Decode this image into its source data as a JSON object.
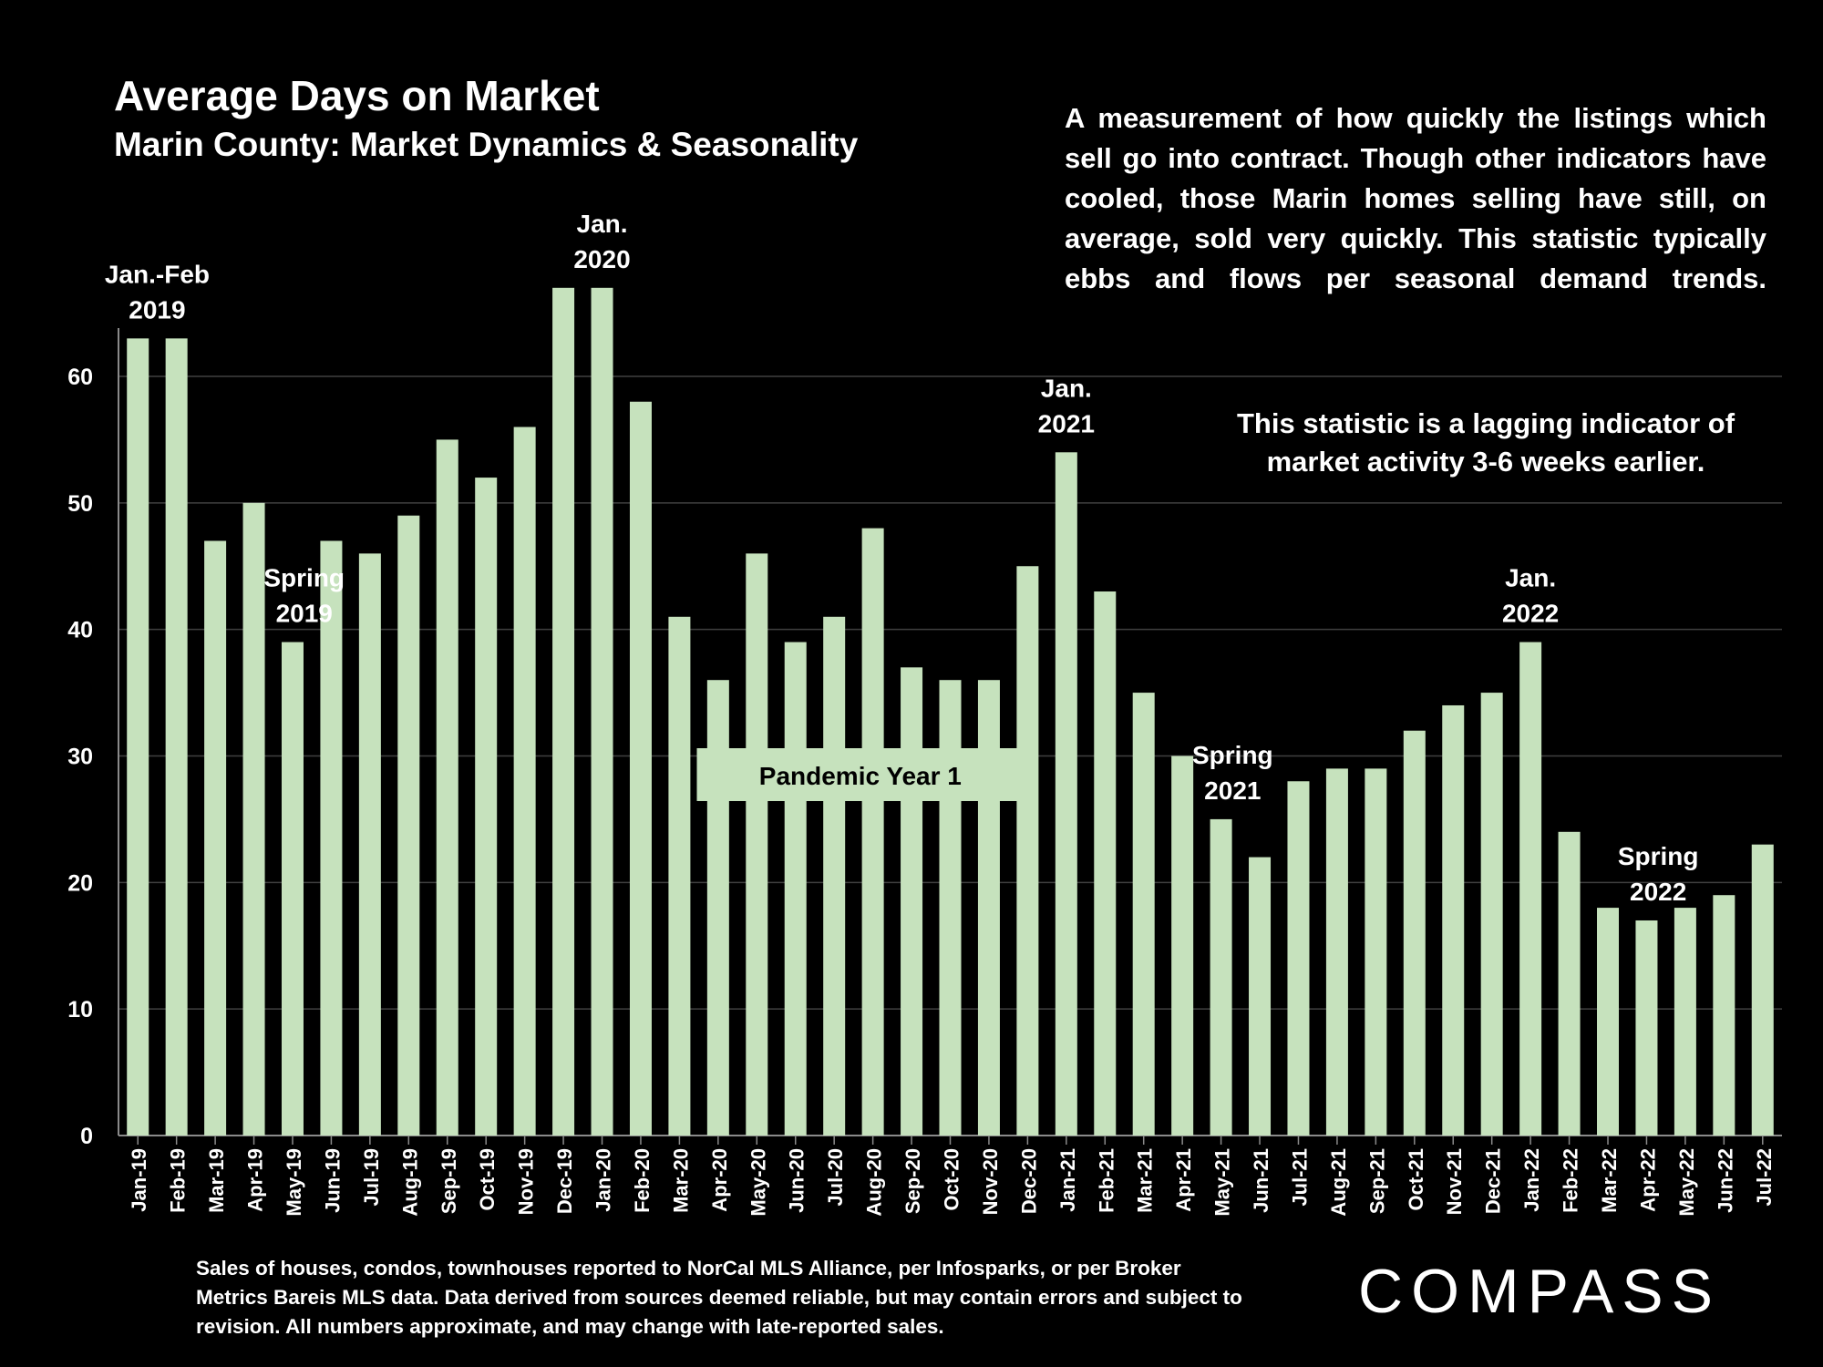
{
  "header": {
    "title": "Average Days on Market",
    "subtitle": "Marin County: Market Dynamics & Seasonality"
  },
  "description": "A measurement of how quickly the listings which sell go into contract. Though other indicators have cooled, those Marin homes selling have still, on average, sold very quickly. This statistic typically ebbs and flows per seasonal demand trends.",
  "lagging_note": "This statistic is a lagging indicator of market activity 3-6 weeks earlier.",
  "footnote": "Sales of houses, condos, townhouses reported to NorCal MLS Alliance, per Infosparks, or per Broker Metrics Bareis MLS data. Data derived from sources deemed reliable, but may contain errors and subject to revision. All numbers approximate, and may change with late-reported sales.",
  "logo": "COMPASS",
  "colors": {
    "bar": "#c6e2bd",
    "background": "#000000",
    "grid": "#404040",
    "text": "#ffffff"
  },
  "chart_data": {
    "type": "bar",
    "title": "Average Days on Market",
    "xlabel": "",
    "ylabel": "",
    "ylim": [
      0,
      64
    ],
    "yticks": [
      0,
      10,
      20,
      30,
      40,
      50,
      60
    ],
    "grid": true,
    "categories": [
      "Jan-19",
      "Feb-19",
      "Mar-19",
      "Apr-19",
      "May-19",
      "Jun-19",
      "Jul-19",
      "Aug-19",
      "Sep-19",
      "Oct-19",
      "Nov-19",
      "Dec-19",
      "Jan-20",
      "Feb-20",
      "Mar-20",
      "Apr-20",
      "May-20",
      "Jun-20",
      "Jul-20",
      "Aug-20",
      "Sep-20",
      "Oct-20",
      "Nov-20",
      "Dec-20",
      "Jan-21",
      "Feb-21",
      "Mar-21",
      "Apr-21",
      "May-21",
      "Jun-21",
      "Jul-21",
      "Aug-21",
      "Sep-21",
      "Oct-21",
      "Nov-21",
      "Dec-21",
      "Jan-22",
      "Feb-22",
      "Mar-22",
      "Apr-22",
      "May-22",
      "Jun-22",
      "Jul-22"
    ],
    "values": [
      63,
      63,
      47,
      50,
      39,
      47,
      46,
      49,
      55,
      52,
      56,
      67,
      67,
      58,
      41,
      36,
      46,
      39,
      41,
      48,
      37,
      36,
      36,
      45,
      54,
      43,
      35,
      30,
      25,
      22,
      28,
      29,
      29,
      32,
      34,
      35,
      39,
      24,
      18,
      17,
      18,
      19,
      23
    ],
    "annotations": [
      {
        "lines": [
          "Jan.-Feb",
          "2019"
        ],
        "category": "Jan-19",
        "offset": 0.5
      },
      {
        "lines": [
          "Spring",
          "2019"
        ],
        "category": "May-19",
        "offset": 0.3
      },
      {
        "lines": [
          "Jan.",
          "2020"
        ],
        "category": "Jan-20",
        "offset": 0
      },
      {
        "lines": [
          "Jan.",
          "2021"
        ],
        "category": "Jan-21",
        "offset": 0
      },
      {
        "lines": [
          "Spring",
          "2021"
        ],
        "category": "May-21",
        "offset": 0.3
      },
      {
        "lines": [
          "Jan.",
          "2022"
        ],
        "category": "Jan-22",
        "offset": 0
      },
      {
        "lines": [
          "Spring",
          "2022"
        ],
        "category": "Apr-22",
        "offset": 0.3
      }
    ],
    "pandemic_label": "Pandemic Year 1",
    "pandemic_range": [
      "Apr-20",
      "Dec-20"
    ]
  }
}
